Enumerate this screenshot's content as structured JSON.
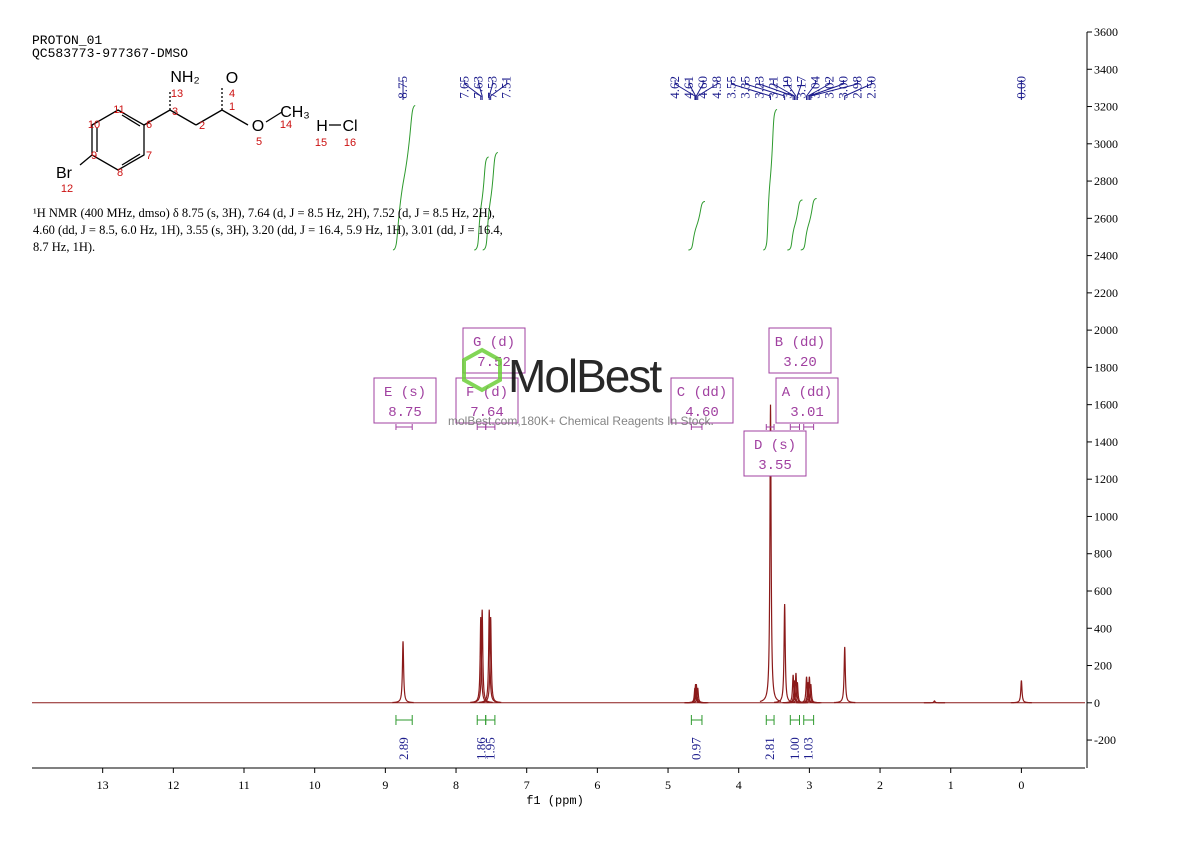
{
  "chart_data": {
    "type": "nmr",
    "title": "PROTON_01",
    "subtitle": "QC583773-977367-DMSO",
    "x_label": "f1 (ppm)",
    "xlim": [
      14,
      -0.9
    ],
    "xticks": [
      13,
      12,
      11,
      10,
      9,
      8,
      7,
      6,
      5,
      4,
      3,
      2,
      1,
      0
    ],
    "ylim": [
      -350,
      3600
    ],
    "yticks": [
      -200,
      0,
      200,
      400,
      600,
      800,
      1000,
      1200,
      1400,
      1600,
      1800,
      2000,
      2200,
      2400,
      2600,
      2800,
      3000,
      3200,
      3400,
      3600
    ],
    "color": "#8b1a1a",
    "peaks": {
      "x": [
        8.75,
        7.65,
        7.63,
        7.53,
        7.51,
        4.62,
        4.61,
        4.6,
        4.58,
        3.55,
        3.35,
        3.23,
        3.21,
        3.19,
        3.17,
        3.04,
        3.02,
        3.0,
        2.98,
        2.5,
        1.23,
        0.0
      ],
      "values": [
        330,
        460,
        500,
        500,
        460,
        80,
        100,
        100,
        80,
        1600,
        530,
        150,
        120,
        160,
        110,
        140,
        110,
        140,
        100,
        300,
        10,
        120
      ]
    },
    "peak_labels": [
      8.75,
      7.65,
      7.63,
      7.53,
      7.51,
      4.62,
      4.61,
      {
        "value": 4.6,
        "label": "4.60"
      },
      4.58,
      3.55,
      3.35,
      3.23,
      3.21,
      3.19,
      3.17,
      3.04,
      3.02,
      {
        "value": 3,
        "label": "3.00"
      },
      2.98,
      {
        "value": 2.5,
        "label": "2.50"
      },
      {
        "value": 0,
        "label": "0.00"
      }
    ],
    "multiplets": [
      {
        "name": "E (s)",
        "shift": 8.75,
        "range": [
          8.85,
          8.62
        ]
      },
      {
        "name": "F (d)",
        "shift": 7.64,
        "range": [
          7.7,
          7.58
        ]
      },
      {
        "name": "G (d)",
        "shift": 7.52,
        "range": [
          7.58,
          7.45
        ]
      },
      {
        "name": "C (dd)",
        "shift": {
          "value": 4.6,
          "label": "4.60"
        },
        "range": [
          4.67,
          4.52
        ]
      },
      {
        "name": "D (s)",
        "shift": 3.55,
        "range": [
          3.61,
          3.5
        ]
      },
      {
        "name": "B (dd)",
        "shift": {
          "value": 3.2,
          "label": "3.20"
        },
        "range": [
          3.27,
          3.14
        ]
      },
      {
        "name": "A (dd)",
        "shift": 3.01,
        "range": [
          3.08,
          2.94
        ]
      }
    ],
    "integrals": [
      {
        "value": 2.89,
        "range": [
          8.85,
          8.62
        ]
      },
      {
        "value": 1.86,
        "range": [
          7.7,
          7.58
        ]
      },
      {
        "value": 1.95,
        "range": [
          7.58,
          7.45
        ]
      },
      {
        "value": 0.97,
        "range": [
          4.67,
          4.52
        ]
      },
      {
        "value": 2.81,
        "range": [
          3.61,
          3.5
        ]
      },
      {
        "value": {
          "value": 1,
          "label": "1.00"
        },
        "range": [
          3.27,
          3.14
        ]
      },
      {
        "value": 1.03,
        "range": [
          3.08,
          2.94
        ]
      }
    ],
    "description": [
      "¹H NMR (400 MHz, dmso) δ 8.75 (s, 3H), 7.64 (d, J = 8.5 Hz, 2H), 7.52 (d, J = 8.5 Hz, 2H),",
      "4.60 (dd, J = 8.5, 6.0 Hz, 1H), 3.55 (s, 3H), 3.20 (dd, J = 16.4, 5.9 Hz, 1H), 3.01 (dd, J = 16.4,",
      "8.7 Hz, 1H)."
    ],
    "molecule": {
      "labels": [
        "NH₂",
        "O",
        "O",
        "CH₃",
        "H",
        "Cl",
        "Br"
      ],
      "numbers": [
        13,
        4,
        1,
        3,
        2,
        11,
        10,
        6,
        9,
        7,
        8,
        12,
        14,
        5,
        15,
        16
      ]
    },
    "watermark": {
      "brand": "MolBest",
      "tagline": "molBest.com,180K+ Chemical Reagents In Stock."
    }
  }
}
